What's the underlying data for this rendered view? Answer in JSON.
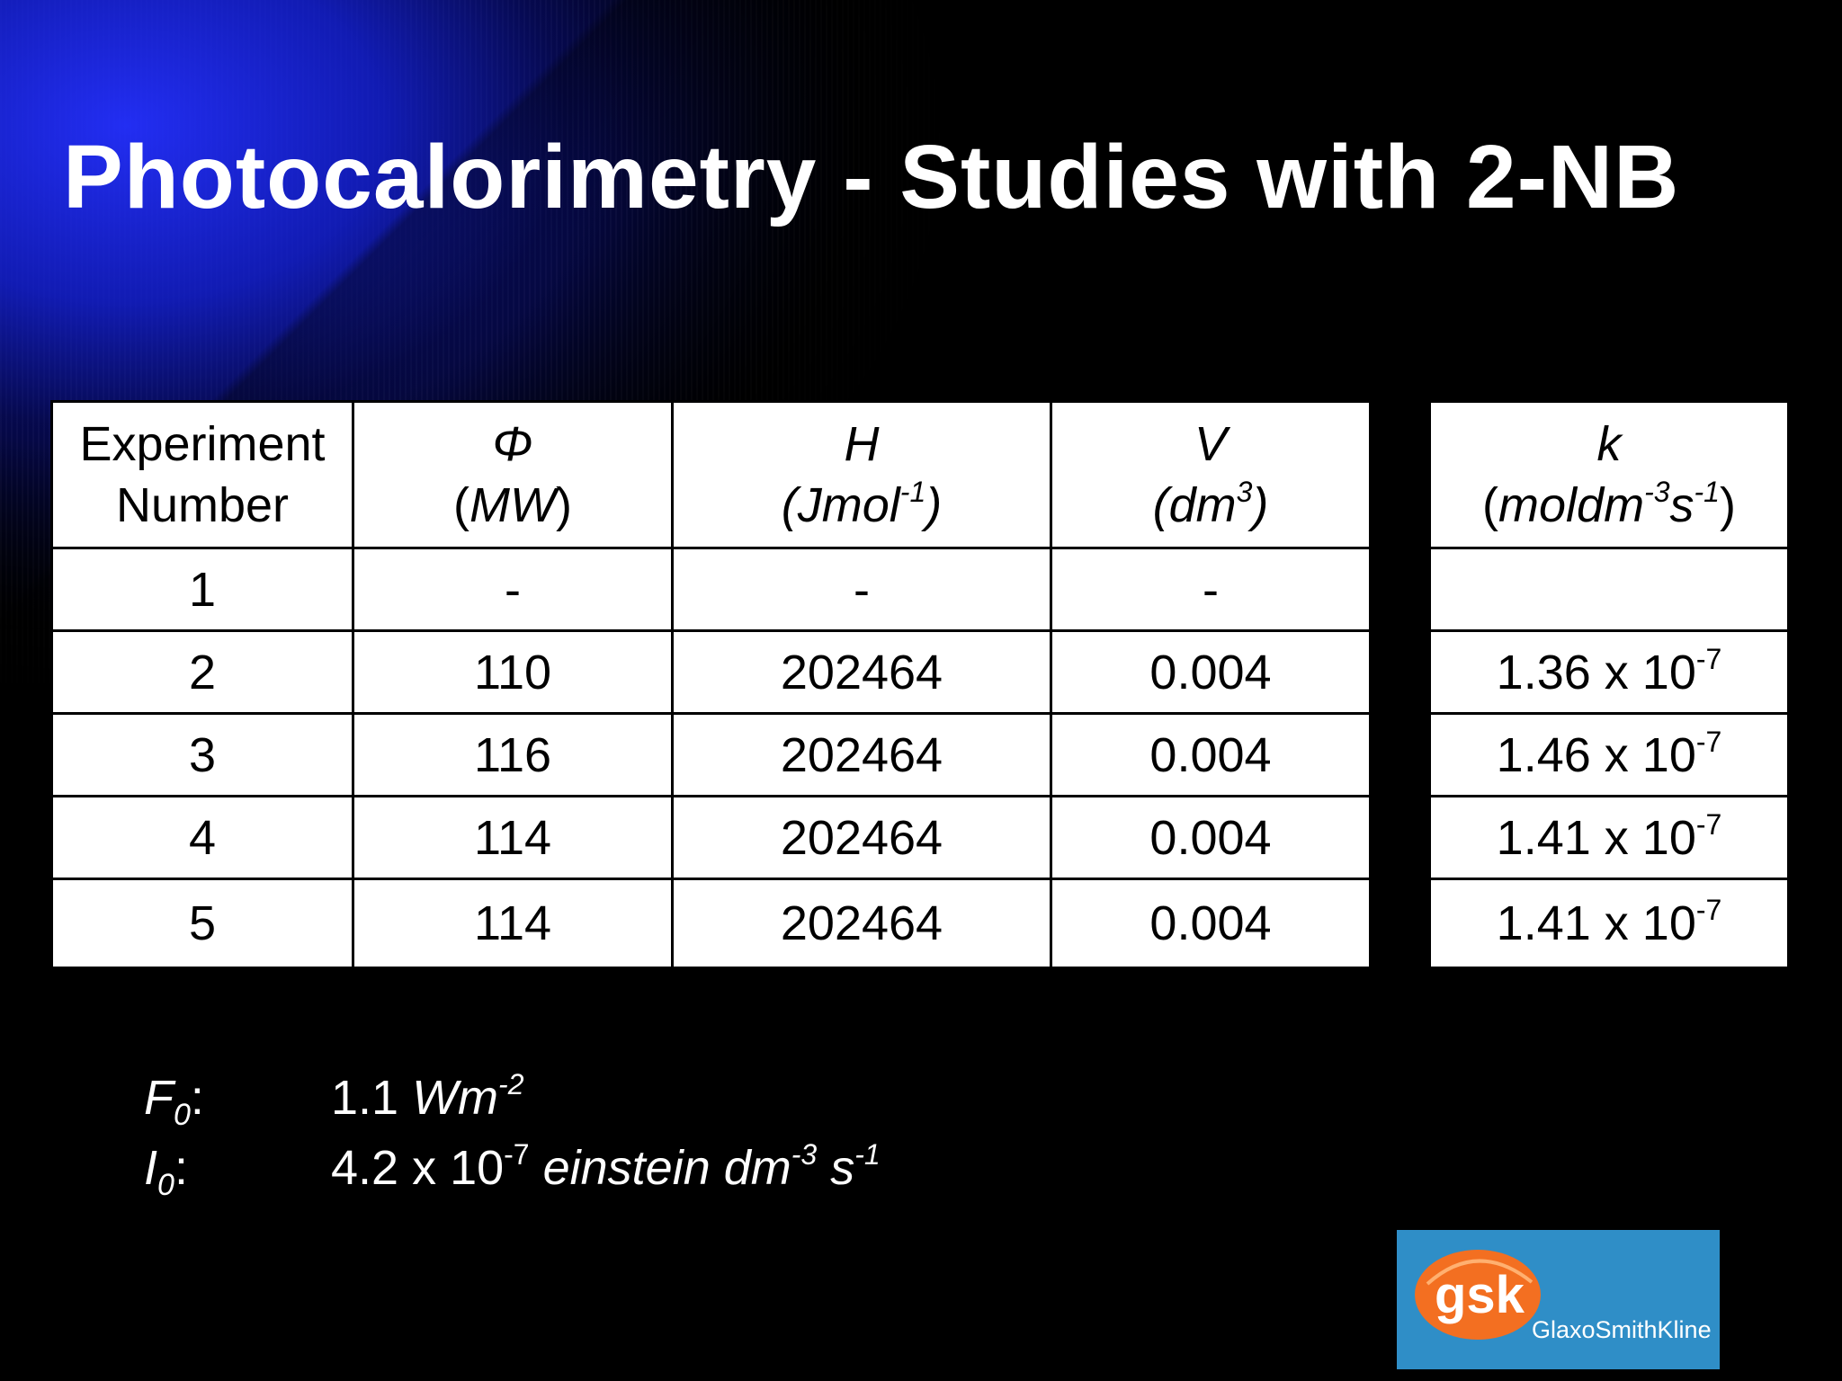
{
  "slide": {
    "title": "Photocalorimetry - Studies with 2-NB"
  },
  "main_table": {
    "headers": [
      {
        "line1": "Experiment",
        "line2": "Number"
      },
      {
        "symbol": "Φ",
        "unit_open": "(",
        "unit_body": "MW",
        "unit_sup": "",
        "unit_close": ")"
      },
      {
        "symbol": "H",
        "unit_open": "(",
        "unit_body": "Jmol",
        "unit_sup": "-1",
        "unit_close": ")"
      },
      {
        "symbol": "V",
        "unit_open": "(",
        "unit_body": "dm",
        "unit_sup": "3",
        "unit_close": ")"
      }
    ],
    "rows": [
      [
        "1",
        "-",
        "-",
        "-"
      ],
      [
        "2",
        "110",
        "202464",
        "0.004"
      ],
      [
        "3",
        "116",
        "202464",
        "0.004"
      ],
      [
        "4",
        "114",
        "202464",
        "0.004"
      ],
      [
        "5",
        "114",
        "202464",
        "0.004"
      ]
    ]
  },
  "k_table": {
    "header": {
      "symbol": "k",
      "unit_open": "(",
      "unit_body": "moldm",
      "unit_sup1": "-3",
      "unit_s": "s",
      "unit_sup2": "-1",
      "unit_close": ")"
    },
    "rows": [
      {
        "mantissa": "",
        "times": "",
        "exp": ""
      },
      {
        "mantissa": "1.36",
        "times": "x 10",
        "exp": "-7"
      },
      {
        "mantissa": "1.46",
        "times": "x 10",
        "exp": "-7"
      },
      {
        "mantissa": "1.41",
        "times": "x 10",
        "exp": "-7"
      },
      {
        "mantissa": "1.41",
        "times": "x 10",
        "exp": "-7"
      }
    ]
  },
  "parameters": [
    {
      "symbol": "F",
      "sub": "0",
      "colon": ":",
      "value": "1.1 ",
      "unit": "Wm",
      "unit_sup": "-2",
      "rest": ""
    },
    {
      "symbol": "I",
      "sub": "0",
      "colon": ":",
      "value": "4.2 x 10",
      "value_sup": "-7",
      "unit": " einstein dm",
      "unit_sup": "-3",
      "rest": " s",
      "rest_sup": "-1"
    }
  ],
  "logo": {
    "mark": "gsk",
    "wordmark": "GlaxoSmithKline",
    "colors": {
      "background": "#2f8ec7",
      "mark": "#f36f21",
      "text": "#ffffff"
    }
  },
  "colors": {
    "background": "#000000",
    "accent": "#1f2cff",
    "table_bg": "#ffffff"
  }
}
